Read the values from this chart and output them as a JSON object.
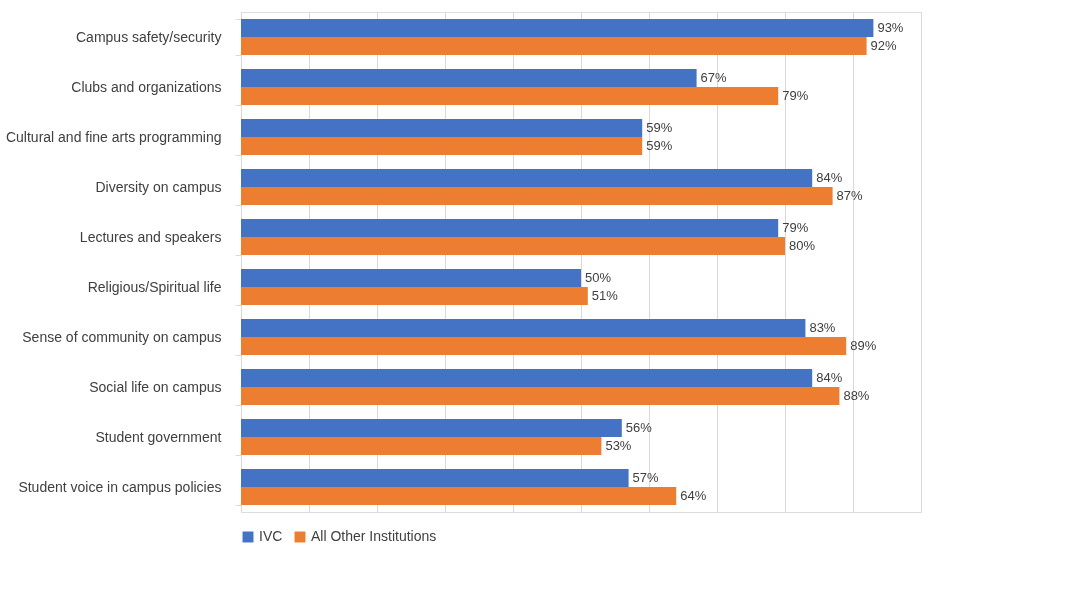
{
  "chart_data": {
    "type": "bar",
    "orientation": "horizontal",
    "categories": [
      "Campus safety/security",
      "Clubs and organizations",
      "Cultural and fine arts programming",
      "Diversity on campus",
      "Lectures and speakers",
      "Religious/Spiritual life",
      "Sense of community on campus",
      "Social life on campus",
      "Student government",
      "Student voice in campus policies"
    ],
    "series": [
      {
        "name": "IVC",
        "color": "#4472c4",
        "values": [
          93,
          67,
          59,
          84,
          79,
          50,
          83,
          84,
          56,
          57
        ],
        "value_labels": [
          "93%",
          "67%",
          "59%",
          "84%",
          "79%",
          "50%",
          "83%",
          "84%",
          "56%",
          "57%"
        ]
      },
      {
        "name": "All Other Institutions",
        "color": "#ed7d31",
        "values": [
          92,
          79,
          59,
          87,
          80,
          51,
          89,
          88,
          53,
          64
        ],
        "value_labels": [
          "92%",
          "79%",
          "59%",
          "87%",
          "80%",
          "51%",
          "89%",
          "88%",
          "53%",
          "64%"
        ]
      }
    ],
    "xlim": [
      0,
      100
    ],
    "xticks": [
      {
        "value": 0,
        "label": null
      },
      {
        "value": 10,
        "label": null
      },
      {
        "value": 20,
        "label": null
      },
      {
        "value": 30,
        "label": null
      },
      {
        "value": 40,
        "label": null
      },
      {
        "value": 50,
        "label": null
      },
      {
        "value": 60,
        "label": null
      },
      {
        "value": 70,
        "label": null
      },
      {
        "value": 80,
        "label": null
      },
      {
        "value": 90,
        "label": null
      },
      {
        "value": 100,
        "label": null
      }
    ],
    "grid": "x",
    "legend": "bottom",
    "tick_labels": "y"
  }
}
